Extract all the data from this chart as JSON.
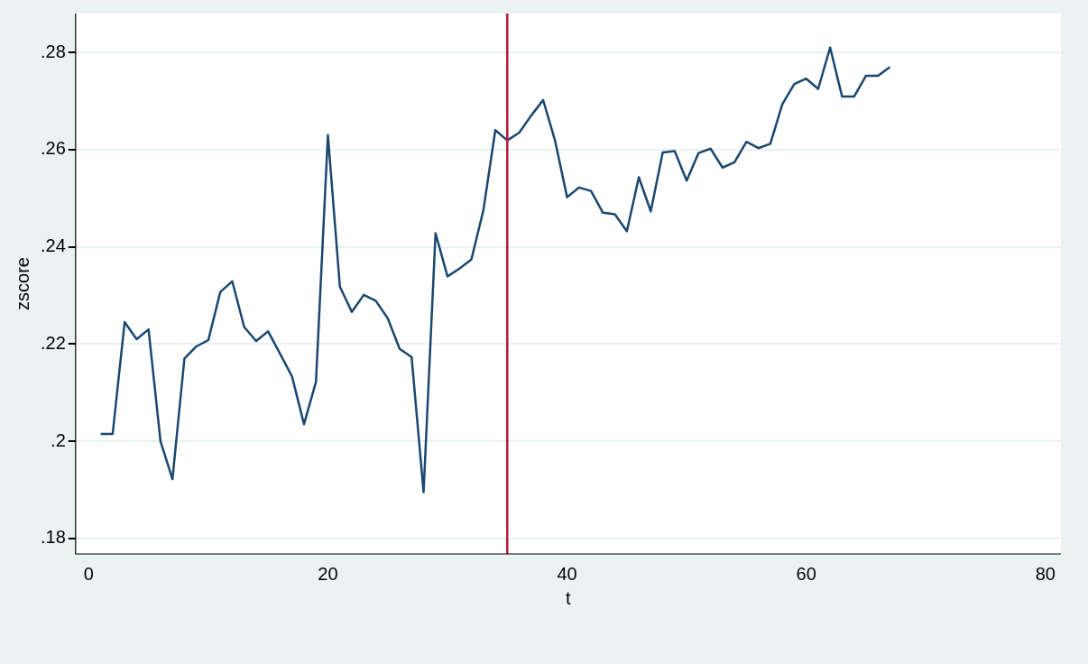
{
  "chart_data": {
    "type": "line",
    "xlabel": "t",
    "ylabel": "zscore",
    "x": [
      1,
      2,
      3,
      4,
      5,
      6,
      7,
      8,
      9,
      10,
      11,
      12,
      13,
      14,
      15,
      16,
      17,
      18,
      19,
      20,
      21,
      22,
      23,
      24,
      25,
      26,
      27,
      28,
      29,
      30,
      31,
      32,
      33,
      34,
      35,
      36,
      37,
      38,
      39,
      40,
      41,
      42,
      43,
      44,
      45,
      46,
      47,
      48,
      49,
      50,
      51,
      52,
      53,
      54,
      55,
      56,
      57,
      58,
      59,
      60,
      61,
      62,
      63,
      64,
      65,
      66,
      67
    ],
    "series": [
      {
        "color": "#1a476f",
        "values": [
          0.2015,
          0.2015,
          0.2245,
          0.221,
          0.223,
          0.2,
          0.1922,
          0.217,
          0.2195,
          0.2208,
          0.2307,
          0.2329,
          0.2235,
          0.2206,
          0.2226,
          0.218,
          0.2133,
          0.2035,
          0.2122,
          0.263,
          0.2318,
          0.2266,
          0.2301,
          0.2289,
          0.2253,
          0.219,
          0.2173,
          0.1895,
          0.2428,
          0.2339,
          0.2355,
          0.2374,
          0.2475,
          0.264,
          0.2619,
          0.2635,
          0.267,
          0.2702,
          0.2618,
          0.2502,
          0.2522,
          0.2515,
          0.247,
          0.2467,
          0.2432,
          0.2543,
          0.2473,
          0.2594,
          0.2597,
          0.2536,
          0.2593,
          0.2602,
          0.2563,
          0.2574,
          0.2616,
          0.2603,
          0.2612,
          0.2693,
          0.2735,
          0.2746,
          0.2725,
          0.281,
          0.2709,
          0.2709,
          0.2752,
          0.2752,
          0.277
        ]
      }
    ],
    "xlim": [
      -1.1,
      81.3
    ],
    "xticks": [
      0,
      20,
      40,
      60,
      80
    ],
    "ylim": [
      0.1768,
      0.288
    ],
    "yticks": [
      {
        "value": 0.18,
        "label": ".18"
      },
      {
        "value": 0.2,
        "label": ".2"
      },
      {
        "value": 0.22,
        "label": ".22"
      },
      {
        "value": 0.24,
        "label": ".24"
      },
      {
        "value": 0.26,
        "label": ".26"
      },
      {
        "value": 0.28,
        "label": ".28"
      }
    ],
    "grid": "y",
    "marker": "none",
    "line_style": "solid",
    "legend": false,
    "ref_lines": [
      {
        "axis": "x",
        "value": 35,
        "color": "#c0143c"
      }
    ]
  }
}
